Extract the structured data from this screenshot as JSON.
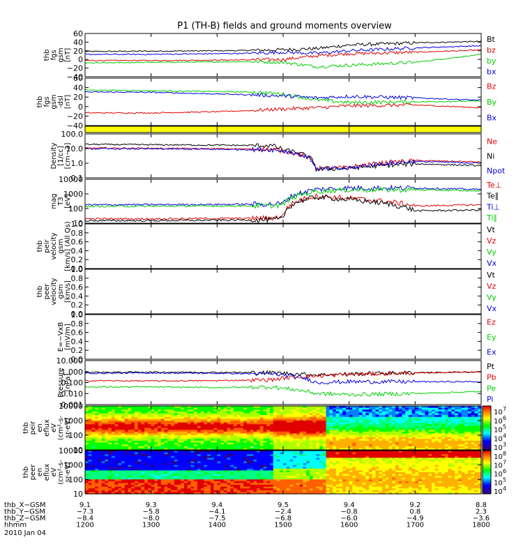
{
  "title": "P1 (TH-B) fields and ground moments overview",
  "colors": {
    "black": "#000000",
    "red": "#e00000",
    "green": "#00d000",
    "blue": "#0000e0",
    "yellow": "#ffff00"
  },
  "panels": [
    {
      "id": "fgs-gsm",
      "ylabel": [
        "thb",
        "fgs",
        "gsm",
        "[nT]"
      ],
      "ticks": [
        "60",
        "40",
        "20",
        "0",
        "−20",
        "−40"
      ],
      "legend": [
        {
          "text": "Bt",
          "color": "black"
        },
        {
          "text": "bz",
          "color": "red"
        },
        {
          "text": "by",
          "color": "green"
        },
        {
          "text": "bx",
          "color": "blue"
        }
      ]
    },
    {
      "id": "fgs-dsl",
      "ylabel": [
        "thb",
        "fgs",
        "gsm",
        "-dsl",
        "[nT]"
      ],
      "ticks": [
        "60",
        "40",
        "20",
        "0",
        "−20",
        "−40"
      ],
      "legend": [
        {
          "text": "Bz",
          "color": "red"
        },
        {
          "text": "By",
          "color": "green"
        },
        {
          "text": "Bx",
          "color": "blue"
        }
      ]
    },
    {
      "id": "flag",
      "ylabel": [],
      "ticks": [],
      "legend": []
    },
    {
      "id": "density",
      "ylabel": [
        "Density",
        "[1/cc]",
        "[cm−3]"
      ],
      "ticks": [
        "100.0",
        "10.0",
        "1.0",
        "0.1"
      ],
      "legend": [
        {
          "text": "Ne",
          "color": "red"
        },
        {
          "text": "Ni",
          "color": "black"
        },
        {
          "text": "Npot",
          "color": "blue"
        }
      ]
    },
    {
      "id": "temp",
      "ylabel": [
        "mag",
        "T3",
        "[eV]"
      ],
      "ticks": [
        "10000",
        "1000",
        "100",
        "10"
      ],
      "legend": [
        {
          "text": "Te⊥",
          "color": "red"
        },
        {
          "text": "Te∥",
          "color": "black"
        },
        {
          "text": "Ti⊥",
          "color": "blue"
        },
        {
          "text": "Ti∥",
          "color": "green"
        }
      ]
    },
    {
      "id": "peir-vel",
      "ylabel": [
        "thb",
        "peir",
        "velocity",
        "gsm",
        "[km/s] (All Qs)"
      ],
      "ticks": [
        "1.0",
        "0.8",
        "0.6",
        "0.4",
        "0.2",
        "0.0"
      ],
      "legend": [
        {
          "text": "Vt",
          "color": "black"
        },
        {
          "text": "Vz",
          "color": "red"
        },
        {
          "text": "Vy",
          "color": "green"
        },
        {
          "text": "Vx",
          "color": "blue"
        }
      ]
    },
    {
      "id": "peer-vel",
      "ylabel": [
        "thb",
        "peer",
        "velocity",
        "gsm",
        "[km/s]"
      ],
      "ticks": [
        "1.0",
        "0.8",
        "0.6",
        "0.4",
        "0.2",
        "0.0"
      ],
      "legend": [
        {
          "text": "Vt",
          "color": "black"
        },
        {
          "text": "Vz",
          "color": "red"
        },
        {
          "text": "Vy",
          "color": "green"
        },
        {
          "text": "Vx",
          "color": "blue"
        }
      ]
    },
    {
      "id": "efield",
      "ylabel": [
        "E=−VxB",
        "[mV/m]"
      ],
      "ticks": [
        "1.0",
        "0.8",
        "0.6",
        "0.4",
        "0.2",
        "0.0"
      ],
      "legend": [
        {
          "text": "Ez",
          "color": "red"
        },
        {
          "text": "Ey",
          "color": "green"
        },
        {
          "text": "Ex",
          "color": "blue"
        }
      ]
    },
    {
      "id": "pressure",
      "ylabel": [
        "Pressure",
        "[nPa]"
      ],
      "ticks": [
        "10.000",
        "1.000",
        "0.100",
        "0.010",
        "0.001"
      ],
      "legend": [
        {
          "text": "Pt",
          "color": "black"
        },
        {
          "text": "Pb",
          "color": "red"
        },
        {
          "text": "Pe",
          "color": "green"
        },
        {
          "text": "Pi",
          "color": "blue"
        }
      ]
    },
    {
      "id": "peir-spec",
      "ylabel": [
        "thb",
        "peir",
        "en",
        "eflux",
        "eV",
        "(cm²-s-",
        "sr-eV)"
      ],
      "ticks": [
        "10000",
        "1000",
        "100",
        "10"
      ],
      "legend": []
    },
    {
      "id": "peer-spec",
      "ylabel": [
        "thb",
        "peer",
        "en",
        "eflux",
        "eV",
        "(cm²-s-",
        "sr-eV)"
      ],
      "ticks": [
        "10000",
        "1000",
        "100",
        "10"
      ],
      "legend": []
    }
  ],
  "colorbar1": [
    "10",
    "7",
    "10",
    "6",
    "10",
    "5",
    "10",
    "4",
    "10",
    "3"
  ],
  "colorbar2": [
    "10",
    "8",
    "10",
    "7",
    "10",
    "6",
    "10",
    "5",
    "10",
    "4"
  ],
  "xaxis": {
    "rows": [
      {
        "label": "thb_X−GSM",
        "values": [
          "9.1",
          "9.3",
          "9.4",
          "9.5",
          "9.4",
          "9.2",
          "8.8"
        ]
      },
      {
        "label": "thb_Y−GSM",
        "values": [
          "−7.3",
          "−5.8",
          "−4.1",
          "−2.4",
          "−0.8",
          "0.8",
          "2.3"
        ]
      },
      {
        "label": "thb_Z−GSM",
        "values": [
          "−8.4",
          "−8.0",
          "−7.5",
          "−6.8",
          "−6.0",
          "−4.9",
          "−3.6"
        ]
      },
      {
        "label": "hhmm",
        "values": [
          "1200",
          "1300",
          "1400",
          "1500",
          "1600",
          "1700",
          "1800"
        ]
      }
    ],
    "date": "2010 Jan 04"
  },
  "chart_data": [
    {
      "type": "line",
      "title": "P1 (TH-B) fields and ground moments overview",
      "ylabel": "thb fgs gsm [nT]",
      "ylim": [
        -50,
        70
      ],
      "x": [
        "1200",
        "1300",
        "1400",
        "1430",
        "1500",
        "1530",
        "1600",
        "1700",
        "1800"
      ],
      "series": [
        {
          "name": "Bt",
          "values": [
            20,
            21,
            22,
            23,
            25,
            28,
            38,
            44,
            48
          ]
        },
        {
          "name": "bz",
          "values": [
            -5,
            -5,
            -4,
            -3,
            -2,
            8,
            14,
            18,
            24
          ]
        },
        {
          "name": "by",
          "values": [
            -12,
            -10,
            -9,
            -8,
            -10,
            -22,
            -18,
            -10,
            12
          ]
        },
        {
          "name": "bx",
          "values": [
            12,
            12,
            14,
            15,
            18,
            15,
            22,
            30,
            36
          ]
        }
      ]
    },
    {
      "type": "line",
      "ylabel": "thb fgs gsm-dsl [nT]",
      "ylim": [
        -50,
        70
      ],
      "x": [
        "1200",
        "1300",
        "1400",
        "1430",
        "1500",
        "1530",
        "1600",
        "1700",
        "1800"
      ],
      "series": [
        {
          "name": "Bz",
          "values": [
            -18,
            -18,
            -15,
            -12,
            -8,
            -5,
            0,
            2,
            -5
          ]
        },
        {
          "name": "By",
          "values": [
            40,
            38,
            36,
            35,
            30,
            15,
            8,
            10,
            12
          ]
        },
        {
          "name": "Bx",
          "values": [
            35,
            34,
            30,
            28,
            25,
            20,
            24,
            20,
            14
          ]
        }
      ]
    },
    {
      "type": "line",
      "ylabel": "Density [1/cc]",
      "ylim": [
        0.05,
        200
      ],
      "x": [
        "1200",
        "1300",
        "1400",
        "1450",
        "1500",
        "1530",
        "1600",
        "1700",
        "1800"
      ],
      "series": [
        {
          "name": "Ne",
          "values": [
            14,
            13,
            12,
            11,
            8,
            0.3,
            0.35,
            1.3,
            1.0
          ]
        },
        {
          "name": "Ni",
          "values": [
            28,
            26,
            24,
            22,
            10,
            0.25,
            0.3,
            0.7,
            0.5
          ]
        },
        {
          "name": "Npot",
          "values": [
            12,
            12,
            11,
            10,
            8,
            0.25,
            0.3,
            1.1,
            0.8
          ]
        }
      ]
    },
    {
      "type": "line",
      "ylabel": "magT3 [eV]",
      "ylim": [
        10,
        10000
      ],
      "x": [
        "1200",
        "1300",
        "1400",
        "1450",
        "1500",
        "1530",
        "1600",
        "1700",
        "1800"
      ],
      "series": [
        {
          "name": "Te⊥",
          "values": [
            20,
            20,
            21,
            22,
            30,
            700,
            500,
            150,
            180
          ]
        },
        {
          "name": "Te∥",
          "values": [
            15,
            15,
            16,
            17,
            20,
            600,
            400,
            70,
            80
          ]
        },
        {
          "name": "Ti⊥",
          "values": [
            180,
            185,
            190,
            200,
            220,
            2000,
            2500,
            2500,
            2000
          ]
        },
        {
          "name": "Ti∥",
          "values": [
            140,
            145,
            150,
            160,
            180,
            1500,
            1900,
            1900,
            1600
          ]
        }
      ]
    },
    {
      "type": "line",
      "ylabel": "Pressure [nPa]",
      "ylim": [
        0.001,
        10
      ],
      "x": [
        "1200",
        "1300",
        "1400",
        "1450",
        "1500",
        "1530",
        "1600",
        "1700",
        "1800"
      ],
      "series": [
        {
          "name": "Pt",
          "values": [
            0.85,
            0.9,
            0.85,
            0.8,
            0.7,
            0.5,
            0.6,
            0.8,
            0.9
          ]
        },
        {
          "name": "Pb",
          "values": [
            0.15,
            0.14,
            0.15,
            0.18,
            0.25,
            0.4,
            0.55,
            0.75,
            0.95
          ]
        },
        {
          "name": "Pe",
          "values": [
            0.04,
            0.04,
            0.035,
            0.04,
            0.03,
            0.01,
            0.008,
            0.01,
            0.015
          ]
        },
        {
          "name": "Pi",
          "values": [
            0.7,
            0.75,
            0.7,
            0.6,
            0.5,
            0.1,
            0.12,
            0.12,
            0.12
          ]
        }
      ]
    }
  ]
}
